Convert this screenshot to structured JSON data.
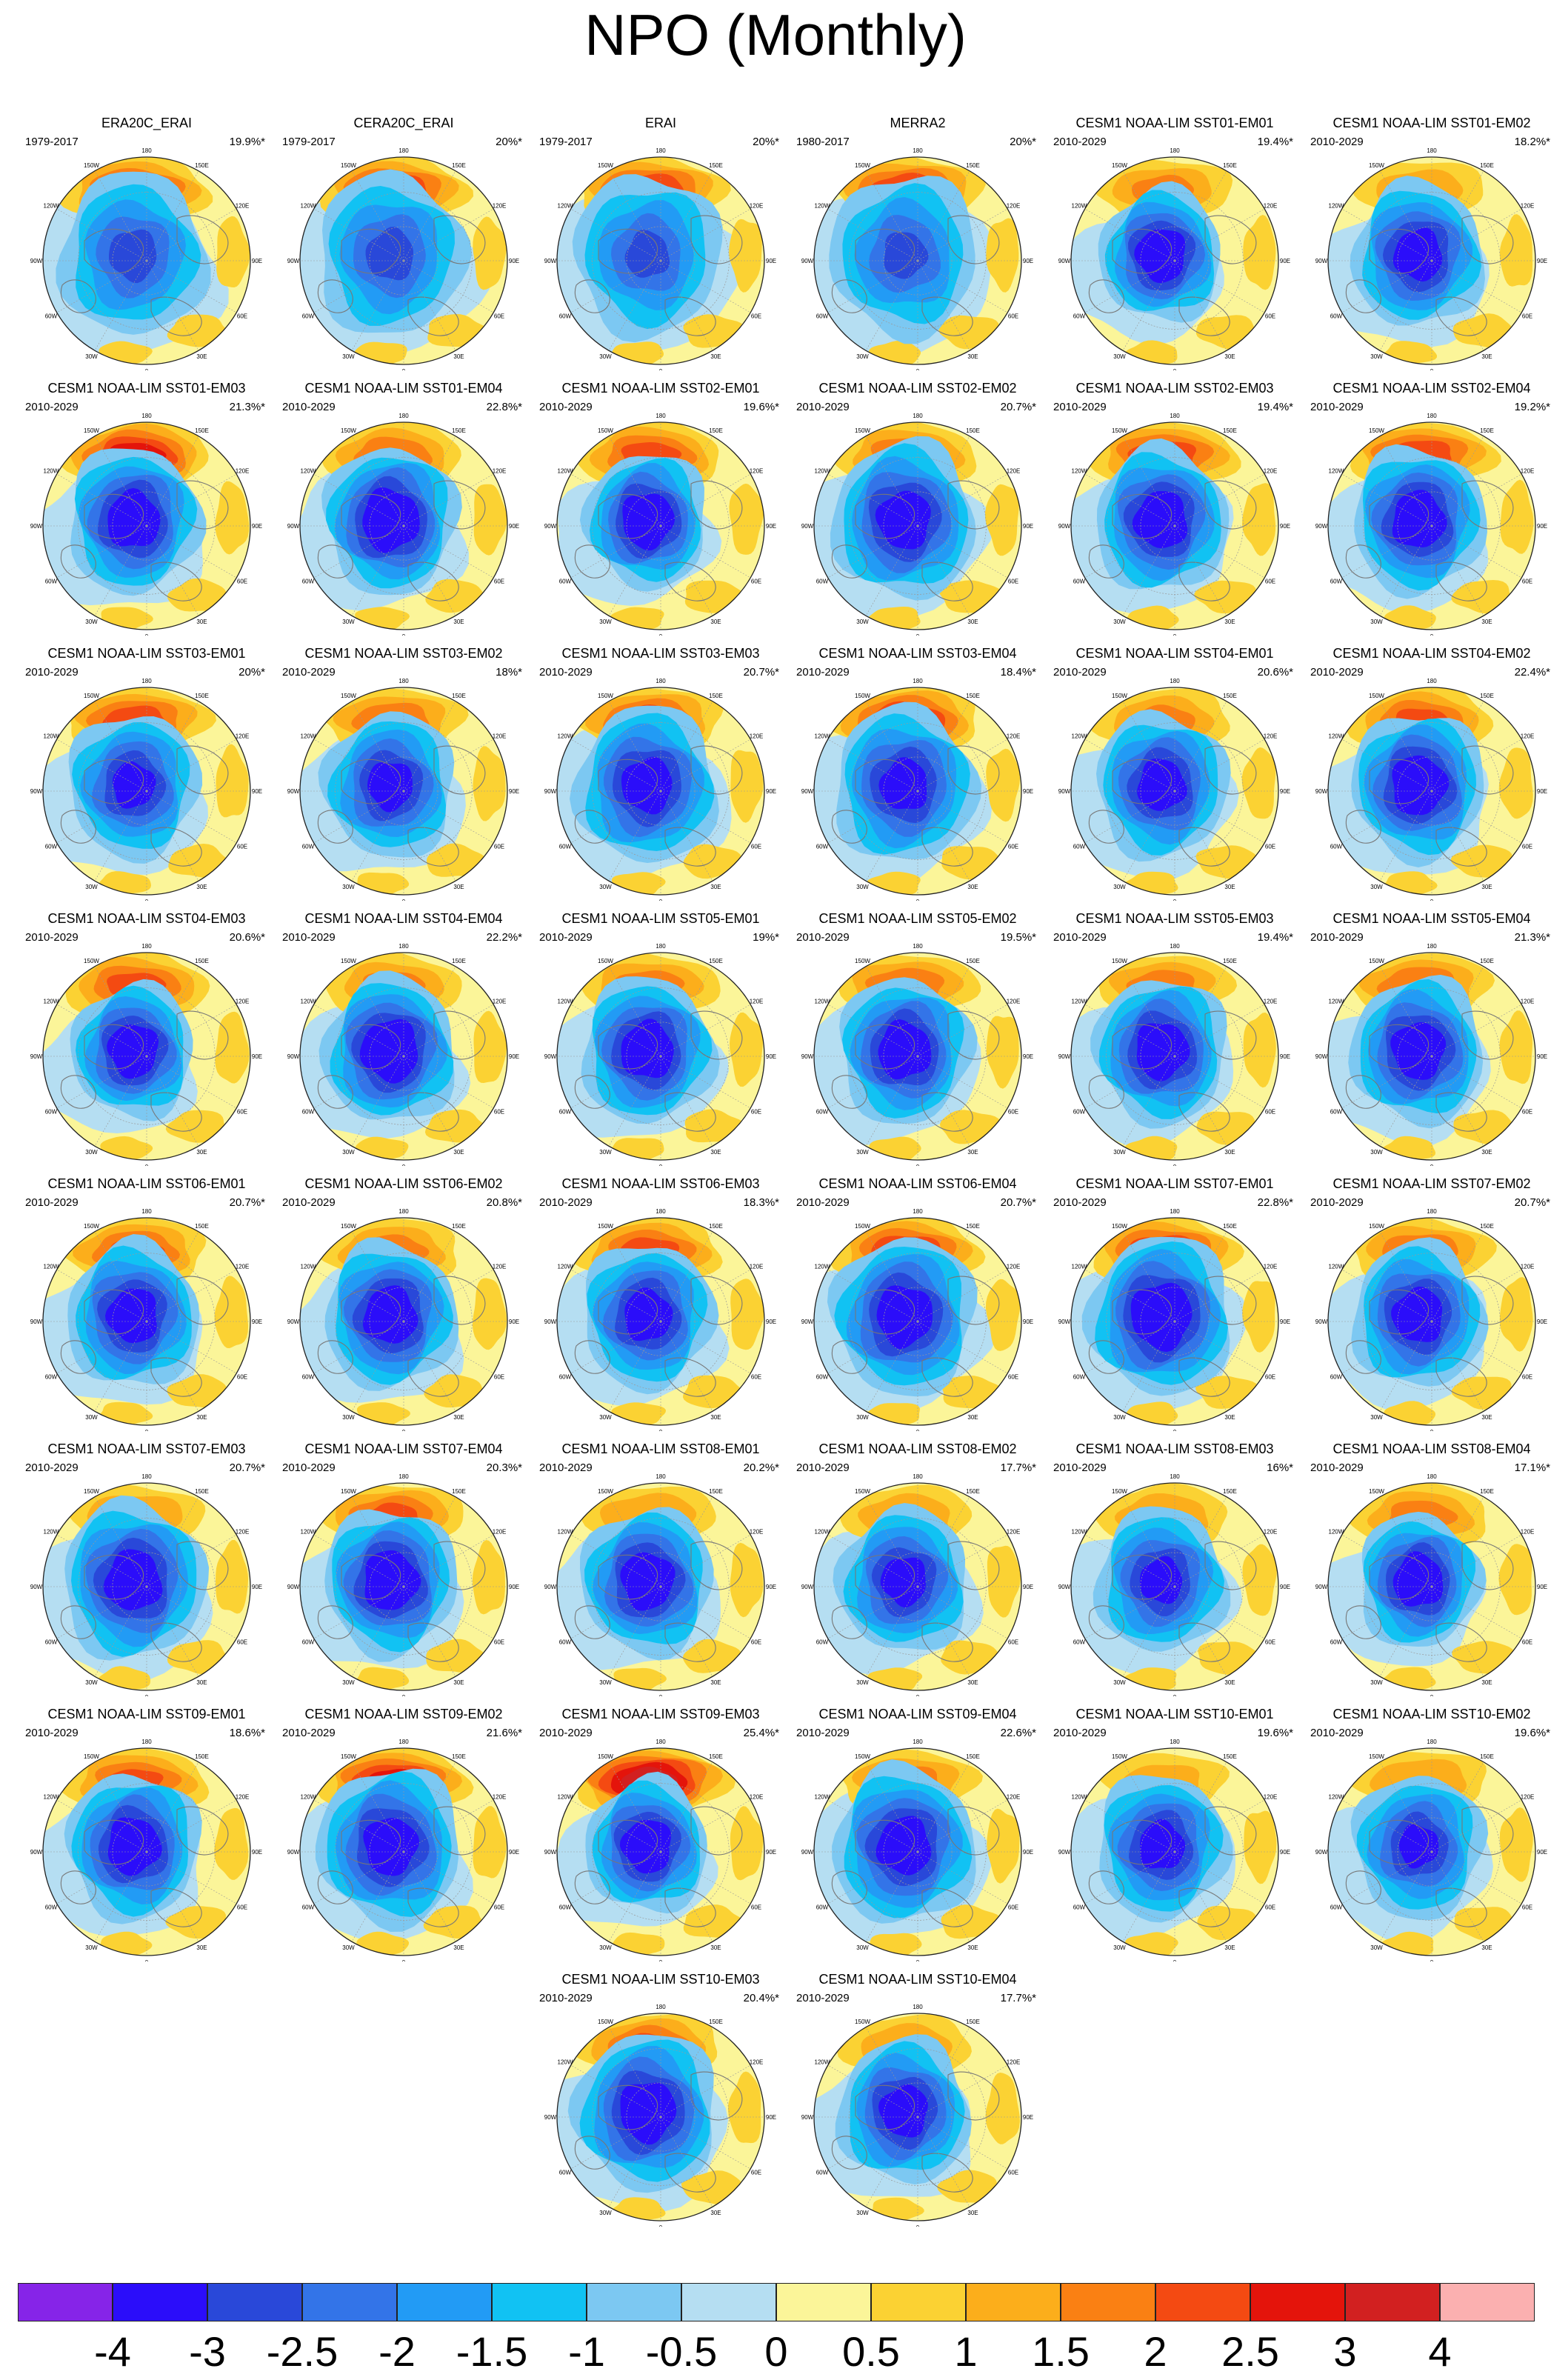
{
  "title": "NPO (Monthly)",
  "lon_labels": [
    "180",
    "150W",
    "150E",
    "120W",
    "120E",
    "90W",
    "90E",
    "60W",
    "60E",
    "30W",
    "30E",
    "0"
  ],
  "panels": [
    {
      "title": "ERA20C_ERAI",
      "period": "1979-2017",
      "pct": "19.9%*",
      "pos_strength": 2.3,
      "neg_strength": 2.6,
      "neg_extent": 1.3
    },
    {
      "title": "CERA20C_ERAI",
      "period": "1979-2017",
      "pct": "20%*",
      "pos_strength": 2.4,
      "neg_strength": 2.6,
      "neg_extent": 1.3
    },
    {
      "title": "ERAI",
      "period": "1979-2017",
      "pct": "20%*",
      "pos_strength": 2.4,
      "neg_strength": 2.5,
      "neg_extent": 1.3
    },
    {
      "title": "MERRA2",
      "period": "1980-2017",
      "pct": "20%*",
      "pos_strength": 2.4,
      "neg_strength": 2.5,
      "neg_extent": 1.3
    },
    {
      "title": "CESM1 NOAA-LIM SST01-EM01",
      "period": "2010-2029",
      "pct": "19.4%*",
      "pos_strength": 1.5,
      "neg_strength": 3.6,
      "neg_extent": 1.0
    },
    {
      "title": "CESM1 NOAA-LIM SST01-EM02",
      "period": "2010-2029",
      "pct": "18.2%*",
      "pos_strength": 1.2,
      "neg_strength": 3.4,
      "neg_extent": 1.1
    },
    {
      "title": "CESM1 NOAA-LIM SST01-EM03",
      "period": "2010-2029",
      "pct": "21.3%*",
      "pos_strength": 2.7,
      "neg_strength": 3.6,
      "neg_extent": 1.1
    },
    {
      "title": "CESM1 NOAA-LIM SST01-EM04",
      "period": "2010-2029",
      "pct": "22.8%*",
      "pos_strength": 1.8,
      "neg_strength": 3.8,
      "neg_extent": 1.1
    },
    {
      "title": "CESM1 NOAA-LIM SST02-EM01",
      "period": "2010-2029",
      "pct": "19.6%*",
      "pos_strength": 2.1,
      "neg_strength": 3.7,
      "neg_extent": 1.0
    },
    {
      "title": "CESM1 NOAA-LIM SST02-EM02",
      "period": "2010-2029",
      "pct": "20.7%*",
      "pos_strength": 1.8,
      "neg_strength": 3.5,
      "neg_extent": 1.2
    },
    {
      "title": "CESM1 NOAA-LIM SST02-EM03",
      "period": "2010-2029",
      "pct": "19.4%*",
      "pos_strength": 2.3,
      "neg_strength": 3.6,
      "neg_extent": 1.1
    },
    {
      "title": "CESM1 NOAA-LIM SST02-EM04",
      "period": "2010-2029",
      "pct": "19.2%*",
      "pos_strength": 2.3,
      "neg_strength": 3.6,
      "neg_extent": 1.1
    },
    {
      "title": "CESM1 NOAA-LIM SST03-EM01",
      "period": "2010-2029",
      "pct": "20%*",
      "pos_strength": 2.2,
      "neg_strength": 3.2,
      "neg_extent": 1.1
    },
    {
      "title": "CESM1 NOAA-LIM SST03-EM02",
      "period": "2010-2029",
      "pct": "18%*",
      "pos_strength": 1.8,
      "neg_strength": 3.3,
      "neg_extent": 1.1
    },
    {
      "title": "CESM1 NOAA-LIM SST03-EM03",
      "period": "2010-2029",
      "pct": "20.7%*",
      "pos_strength": 2.2,
      "neg_strength": 3.4,
      "neg_extent": 1.2
    },
    {
      "title": "CESM1 NOAA-LIM SST03-EM04",
      "period": "2010-2029",
      "pct": "18.4%*",
      "pos_strength": 2.6,
      "neg_strength": 3.3,
      "neg_extent": 1.2
    },
    {
      "title": "CESM1 NOAA-LIM SST04-EM01",
      "period": "2010-2029",
      "pct": "20.6%*",
      "pos_strength": 1.5,
      "neg_strength": 3.4,
      "neg_extent": 1.1
    },
    {
      "title": "CESM1 NOAA-LIM SST04-EM02",
      "period": "2010-2029",
      "pct": "22.4%*",
      "pos_strength": 2.0,
      "neg_strength": 3.7,
      "neg_extent": 1.1
    },
    {
      "title": "CESM1 NOAA-LIM SST04-EM03",
      "period": "2010-2029",
      "pct": "20.6%*",
      "pos_strength": 2.1,
      "neg_strength": 3.6,
      "neg_extent": 1.0
    },
    {
      "title": "CESM1 NOAA-LIM SST04-EM04",
      "period": "2010-2029",
      "pct": "22.2%*",
      "pos_strength": 1.5,
      "neg_strength": 3.8,
      "neg_extent": 1.1
    },
    {
      "title": "CESM1 NOAA-LIM SST05-EM01",
      "period": "2010-2029",
      "pct": "19%*",
      "pos_strength": 1.6,
      "neg_strength": 3.6,
      "neg_extent": 1.1
    },
    {
      "title": "CESM1 NOAA-LIM SST05-EM02",
      "period": "2010-2029",
      "pct": "19.5%*",
      "pos_strength": 1.8,
      "neg_strength": 3.6,
      "neg_extent": 1.1
    },
    {
      "title": "CESM1 NOAA-LIM SST05-EM03",
      "period": "2010-2029",
      "pct": "19.4%*",
      "pos_strength": 1.6,
      "neg_strength": 3.6,
      "neg_extent": 1.1
    },
    {
      "title": "CESM1 NOAA-LIM SST05-EM04",
      "period": "2010-2029",
      "pct": "21.3%*",
      "pos_strength": 1.9,
      "neg_strength": 3.6,
      "neg_extent": 1.1
    },
    {
      "title": "CESM1 NOAA-LIM SST06-EM01",
      "period": "2010-2029",
      "pct": "20.7%*",
      "pos_strength": 2.0,
      "neg_strength": 3.5,
      "neg_extent": 1.1
    },
    {
      "title": "CESM1 NOAA-LIM SST06-EM02",
      "period": "2010-2029",
      "pct": "20.8%*",
      "pos_strength": 1.6,
      "neg_strength": 3.6,
      "neg_extent": 1.1
    },
    {
      "title": "CESM1 NOAA-LIM SST06-EM03",
      "period": "2010-2029",
      "pct": "18.3%*",
      "pos_strength": 2.1,
      "neg_strength": 3.4,
      "neg_extent": 1.1
    },
    {
      "title": "CESM1 NOAA-LIM SST06-EM04",
      "period": "2010-2029",
      "pct": "20.7%*",
      "pos_strength": 2.4,
      "neg_strength": 3.6,
      "neg_extent": 1.2
    },
    {
      "title": "CESM1 NOAA-LIM SST07-EM01",
      "period": "2010-2029",
      "pct": "22.8%*",
      "pos_strength": 2.4,
      "neg_strength": 3.8,
      "neg_extent": 1.2
    },
    {
      "title": "CESM1 NOAA-LIM SST07-EM02",
      "period": "2010-2029",
      "pct": "20.7%*",
      "pos_strength": 1.8,
      "neg_strength": 3.5,
      "neg_extent": 1.1
    },
    {
      "title": "CESM1 NOAA-LIM SST07-EM03",
      "period": "2010-2029",
      "pct": "20.7%*",
      "pos_strength": 1.4,
      "neg_strength": 3.6,
      "neg_extent": 1.2
    },
    {
      "title": "CESM1 NOAA-LIM SST07-EM04",
      "period": "2010-2029",
      "pct": "20.3%*",
      "pos_strength": 2.0,
      "neg_strength": 3.7,
      "neg_extent": 1.1
    },
    {
      "title": "CESM1 NOAA-LIM SST08-EM01",
      "period": "2010-2029",
      "pct": "20.2%*",
      "pos_strength": 1.4,
      "neg_strength": 3.6,
      "neg_extent": 1.1
    },
    {
      "title": "CESM1 NOAA-LIM SST08-EM02",
      "period": "2010-2029",
      "pct": "17.7%*",
      "pos_strength": 1.3,
      "neg_strength": 3.3,
      "neg_extent": 1.1
    },
    {
      "title": "CESM1 NOAA-LIM SST08-EM03",
      "period": "2010-2029",
      "pct": "16%*",
      "pos_strength": 1.3,
      "neg_strength": 3.2,
      "neg_extent": 1.1
    },
    {
      "title": "CESM1 NOAA-LIM SST08-EM04",
      "period": "2010-2029",
      "pct": "17.1%*",
      "pos_strength": 1.6,
      "neg_strength": 3.6,
      "neg_extent": 1.0
    },
    {
      "title": "CESM1 NOAA-LIM SST09-EM01",
      "period": "2010-2029",
      "pct": "18.6%*",
      "pos_strength": 2.0,
      "neg_strength": 3.6,
      "neg_extent": 1.1
    },
    {
      "title": "CESM1 NOAA-LIM SST09-EM02",
      "period": "2010-2029",
      "pct": "21.6%*",
      "pos_strength": 2.6,
      "neg_strength": 3.5,
      "neg_extent": 1.2
    },
    {
      "title": "CESM1 NOAA-LIM SST09-EM03",
      "period": "2010-2029",
      "pct": "25.4%*",
      "pos_strength": 3.4,
      "neg_strength": 3.6,
      "neg_extent": 1.0
    },
    {
      "title": "CESM1 NOAA-LIM SST09-EM04",
      "period": "2010-2029",
      "pct": "22.6%*",
      "pos_strength": 1.6,
      "neg_strength": 3.5,
      "neg_extent": 1.2
    },
    {
      "title": "CESM1 NOAA-LIM SST10-EM01",
      "period": "2010-2029",
      "pct": "19.6%*",
      "pos_strength": 1.0,
      "neg_strength": 3.3,
      "neg_extent": 1.1
    },
    {
      "title": "CESM1 NOAA-LIM SST10-EM02",
      "period": "2010-2029",
      "pct": "19.6%*",
      "pos_strength": 1.4,
      "neg_strength": 3.1,
      "neg_extent": 1.1
    },
    {
      "title": "CESM1 NOAA-LIM SST10-EM03",
      "period": "2010-2029",
      "pct": "20.4%*",
      "pos_strength": 2.0,
      "neg_strength": 3.6,
      "neg_extent": 1.2
    },
    {
      "title": "CESM1 NOAA-LIM SST10-EM04",
      "period": "2010-2029",
      "pct": "17.7%*",
      "pos_strength": 1.3,
      "neg_strength": 3.4,
      "neg_extent": 1.1
    }
  ],
  "colorbar": {
    "levels": [
      "-4",
      "-3",
      "-2.5",
      "-2",
      "-1.5",
      "-1",
      "-0.5",
      "0",
      "0.5",
      "1",
      "1.5",
      "2",
      "2.5",
      "3",
      "4"
    ],
    "colors": [
      "#8624e8",
      "#2b0dfa",
      "#2948d9",
      "#3374e8",
      "#229bf5",
      "#11c2f3",
      "#7cc8f2",
      "#b5def2",
      "#fbf599",
      "#fbd233",
      "#fcae1b",
      "#fa8013",
      "#f44a12",
      "#e4140b",
      "#d22020",
      "#fbb0b0"
    ]
  },
  "land_color": "#777777",
  "grid_color": "#9a9a9a"
}
